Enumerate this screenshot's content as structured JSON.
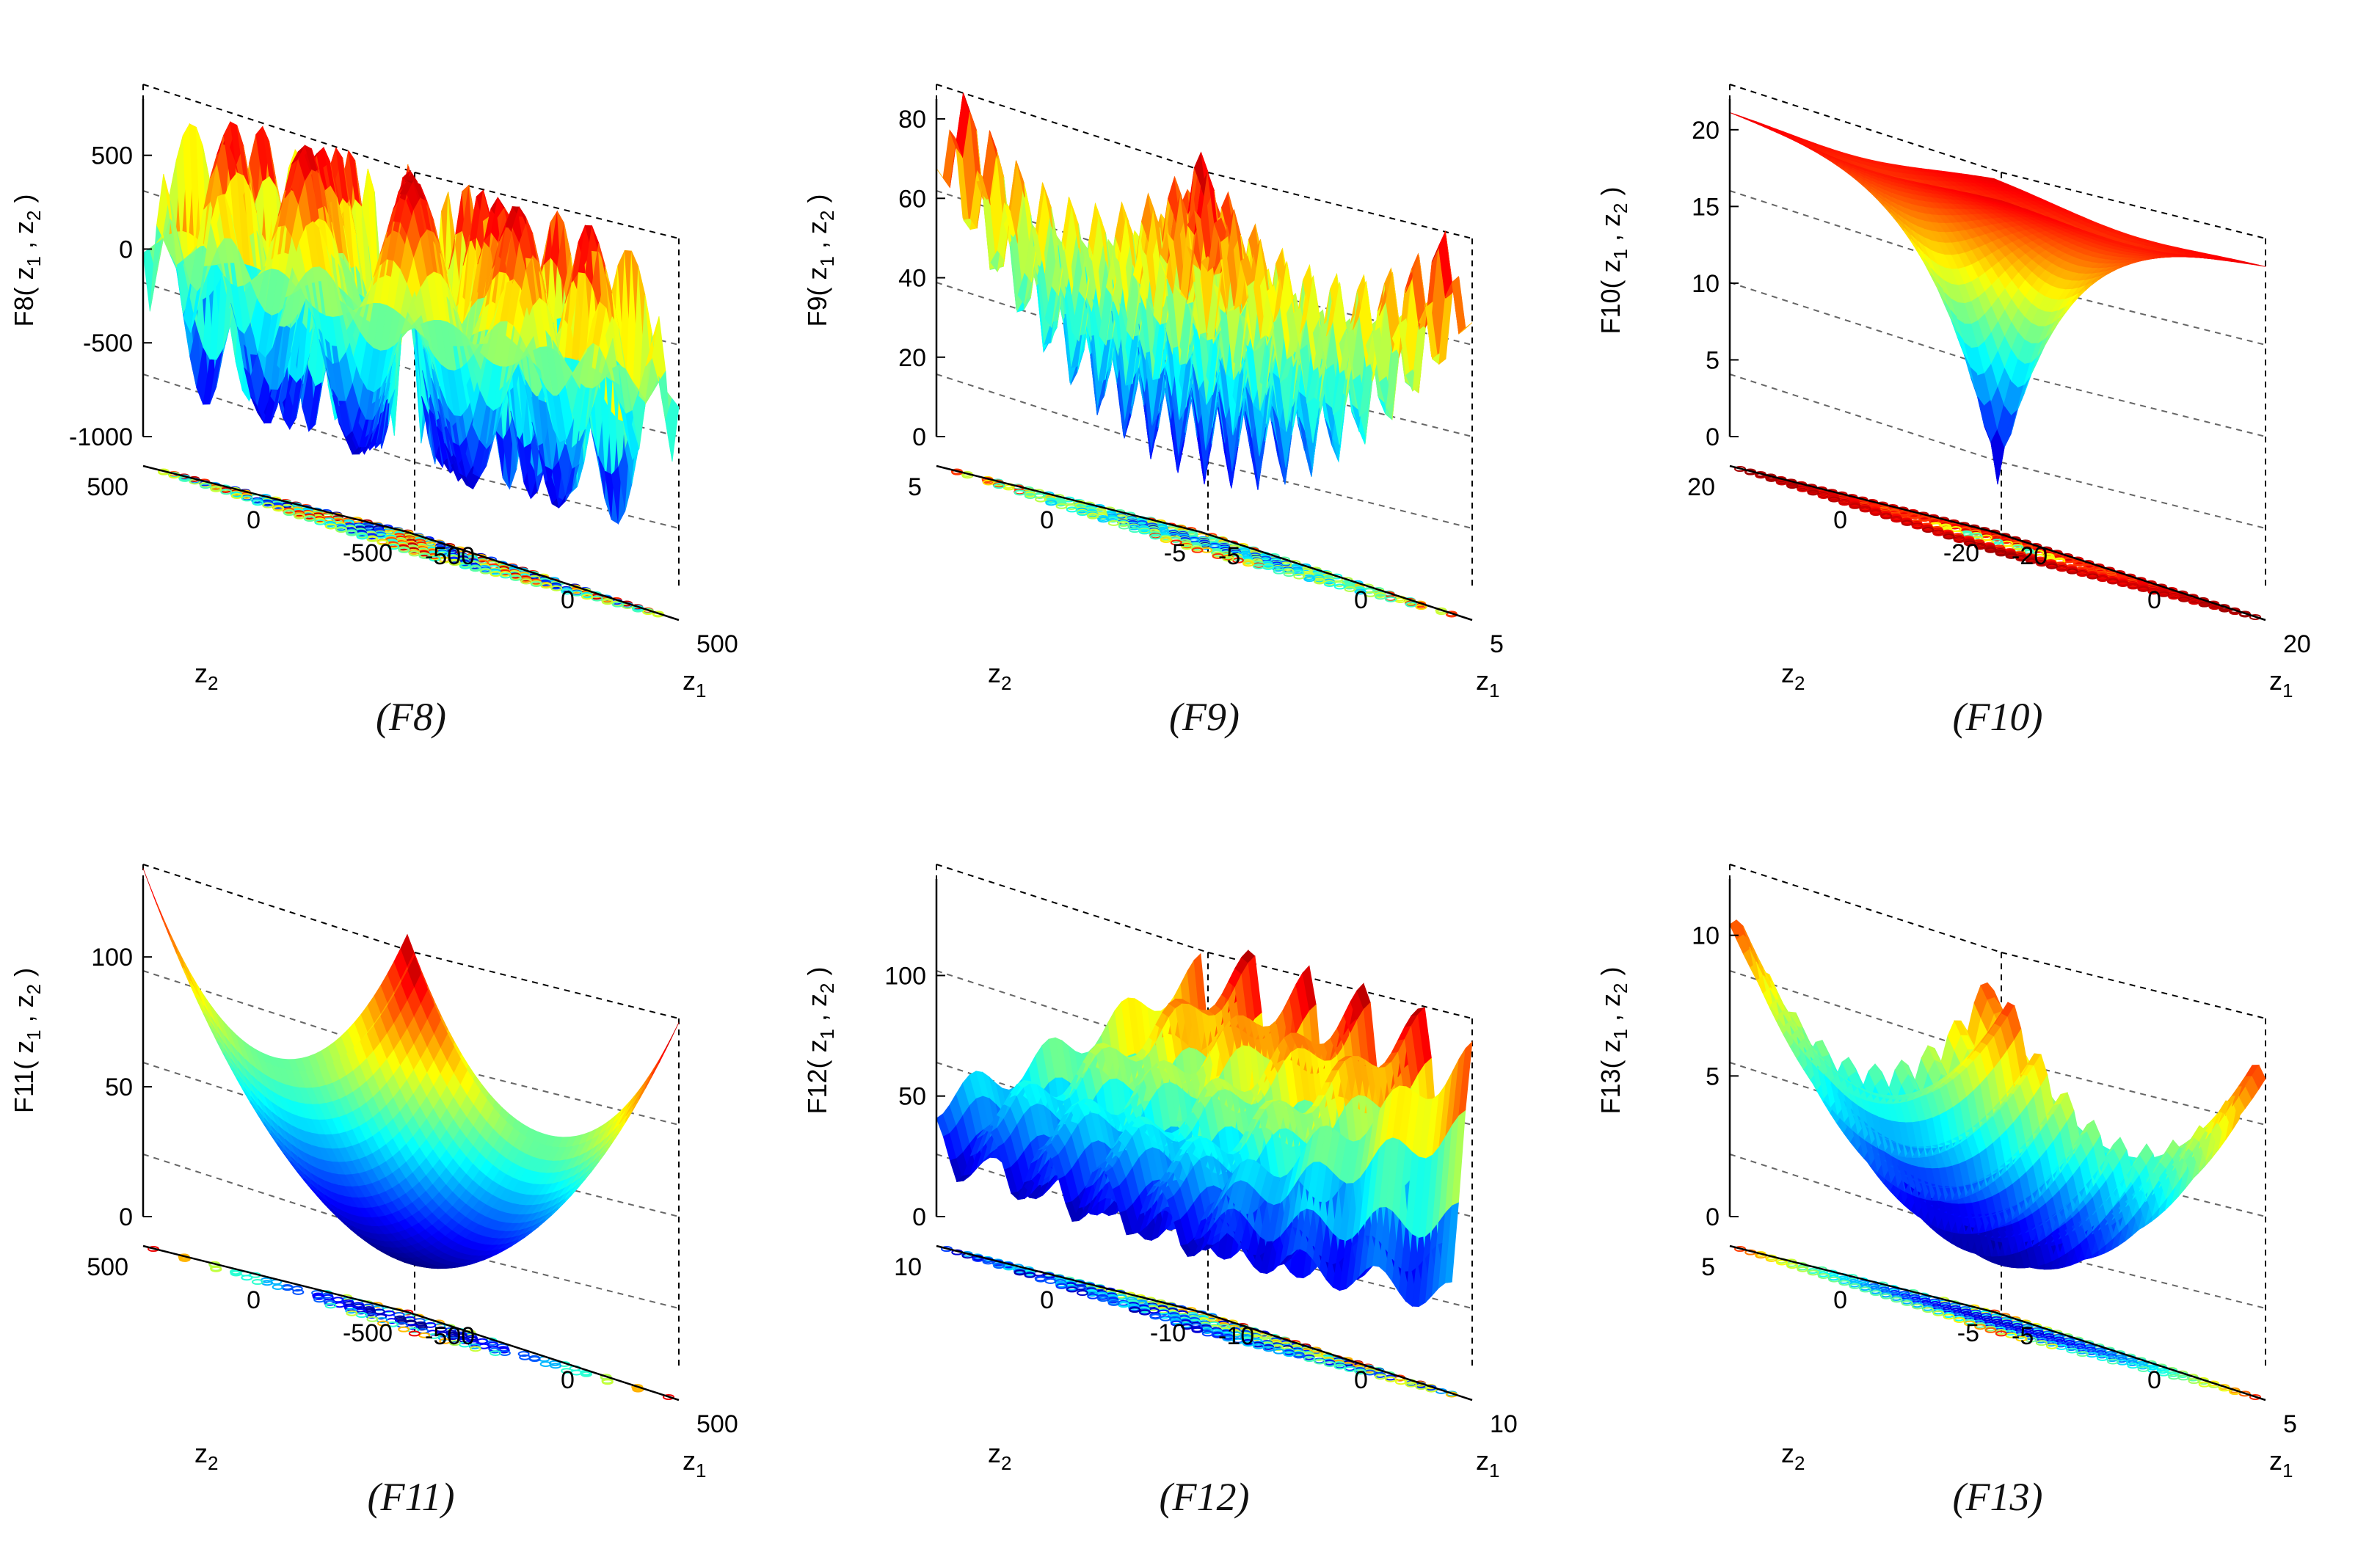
{
  "chart_data": [
    {
      "id": "F8",
      "type": "surface3d",
      "caption": "(F8)",
      "zlabel": "F8",
      "xlabel": "z",
      "ylabel": "z",
      "zlim": [
        -1000,
        800
      ],
      "z_ticks": [
        500,
        0,
        -500,
        -1000
      ],
      "z_tick_labels": [
        "500",
        "0",
        "-500",
        "-1000"
      ],
      "x_tick_labels": [
        "-500",
        "0",
        "500"
      ],
      "y_tick_labels": [
        "500",
        "0",
        "-500"
      ],
      "shape": "schwefel",
      "contour_style": "rings"
    },
    {
      "id": "F9",
      "type": "surface3d",
      "caption": "(F9)",
      "zlabel": "F9",
      "xlabel": "z",
      "ylabel": "z",
      "zlim": [
        0,
        85
      ],
      "z_ticks": [
        80,
        60,
        40,
        20,
        0
      ],
      "z_tick_labels": [
        "80",
        "60",
        "40",
        "20",
        "0"
      ],
      "x_tick_labels": [
        "-5",
        "0",
        "5"
      ],
      "y_tick_labels": [
        "5",
        "0",
        "-5"
      ],
      "shape": "rastrigin",
      "contour_style": "rings"
    },
    {
      "id": "F10",
      "type": "surface3d",
      "caption": "(F10)",
      "zlabel": "F10",
      "xlabel": "z",
      "ylabel": "z",
      "zlim": [
        0,
        22
      ],
      "z_ticks": [
        20,
        15,
        10,
        5,
        0
      ],
      "z_tick_labels": [
        "20",
        "15",
        "10",
        "5",
        "0"
      ],
      "x_tick_labels": [
        "-20",
        "0",
        "20"
      ],
      "y_tick_labels": [
        "20",
        "0",
        "-20"
      ],
      "shape": "ackley",
      "contour_style": "concentric-band"
    },
    {
      "id": "F11",
      "type": "surface3d",
      "caption": "(F11)",
      "zlabel": "F11",
      "xlabel": "z",
      "ylabel": "z",
      "zlim": [
        0,
        130
      ],
      "z_ticks": [
        100,
        50,
        0
      ],
      "z_tick_labels": [
        "100",
        "50",
        "0"
      ],
      "x_tick_labels": [
        "-500",
        "0",
        "500"
      ],
      "y_tick_labels": [
        "500",
        "0",
        "-500"
      ],
      "shape": "griewank",
      "contour_style": "concentric"
    },
    {
      "id": "F12",
      "type": "surface3d",
      "caption": "(F12)",
      "zlabel": "F12",
      "xlabel": "z",
      "ylabel": "z",
      "zlim": [
        0,
        140
      ],
      "z_ticks": [
        100,
        50,
        0
      ],
      "z_tick_labels": [
        "100",
        "50",
        "0"
      ],
      "x_tick_labels": [
        "-10",
        "0",
        "10"
      ],
      "y_tick_labels": [
        "10",
        "0",
        "-10"
      ],
      "shape": "ridges",
      "contour_style": "blobs"
    },
    {
      "id": "F13",
      "type": "surface3d",
      "caption": "(F13)",
      "zlabel": "F13",
      "xlabel": "z",
      "ylabel": "z",
      "zlim": [
        0,
        12
      ],
      "z_ticks": [
        10,
        5,
        0
      ],
      "z_tick_labels": [
        "10",
        "5",
        "0"
      ],
      "x_tick_labels": [
        "-5",
        "0",
        "5"
      ],
      "y_tick_labels": [
        "5",
        "0",
        "-5"
      ],
      "shape": "levy",
      "contour_style": "stripes"
    }
  ],
  "subscripts": {
    "one": "1",
    "two": "2"
  }
}
